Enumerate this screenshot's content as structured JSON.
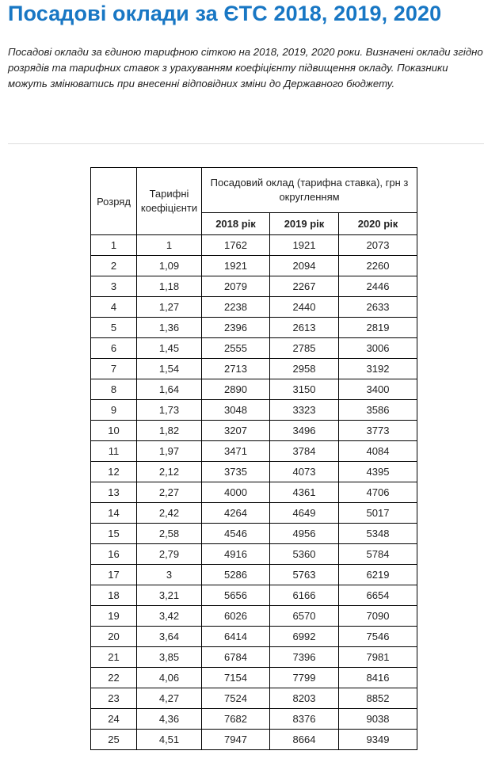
{
  "title": "Посадові оклади за ЄТС 2018, 2019, 2020",
  "intro": "Посадові оклади за єдиною тарифною сіткою на 2018, 2019, 2020 роки. Визначені оклади згідно розрядів та тарифних ставок з урахуванням коефіцієнту підвищення окладу. Показники можуть змінюватись при внесенні відповідних зміни до Державного бюджету.",
  "table": {
    "headers": {
      "rank": "Розряд",
      "coef": "Тарифні коефіцієнти",
      "salary": "Посадовий оклад (тарифна ставка), грн з округленням",
      "years": [
        "2018 рік",
        "2019 рік",
        "2020 рік"
      ]
    },
    "rows": [
      [
        "1",
        "1",
        "1762",
        "1921",
        "2073"
      ],
      [
        "2",
        "1,09",
        "1921",
        "2094",
        "2260"
      ],
      [
        "3",
        "1,18",
        "2079",
        "2267",
        "2446"
      ],
      [
        "4",
        "1,27",
        "2238",
        "2440",
        "2633"
      ],
      [
        "5",
        "1,36",
        "2396",
        "2613",
        "2819"
      ],
      [
        "6",
        "1,45",
        "2555",
        "2785",
        "3006"
      ],
      [
        "7",
        "1,54",
        "2713",
        "2958",
        "3192"
      ],
      [
        "8",
        "1,64",
        "2890",
        "3150",
        "3400"
      ],
      [
        "9",
        "1,73",
        "3048",
        "3323",
        "3586"
      ],
      [
        "10",
        "1,82",
        "3207",
        "3496",
        "3773"
      ],
      [
        "11",
        "1,97",
        "3471",
        "3784",
        "4084"
      ],
      [
        "12",
        "2,12",
        "3735",
        "4073",
        "4395"
      ],
      [
        "13",
        "2,27",
        "4000",
        "4361",
        "4706"
      ],
      [
        "14",
        "2,42",
        "4264",
        "4649",
        "5017"
      ],
      [
        "15",
        "2,58",
        "4546",
        "4956",
        "5348"
      ],
      [
        "16",
        "2,79",
        "4916",
        "5360",
        "5784"
      ],
      [
        "17",
        "3",
        "5286",
        "5763",
        "6219"
      ],
      [
        "18",
        "3,21",
        "5656",
        "6166",
        "6654"
      ],
      [
        "19",
        "3,42",
        "6026",
        "6570",
        "7090"
      ],
      [
        "20",
        "3,64",
        "6414",
        "6992",
        "7546"
      ],
      [
        "21",
        "3,85",
        "6784",
        "7396",
        "7981"
      ],
      [
        "22",
        "4,06",
        "7154",
        "7799",
        "8416"
      ],
      [
        "23",
        "4,27",
        "7524",
        "8203",
        "8852"
      ],
      [
        "24",
        "4,36",
        "7682",
        "8376",
        "9038"
      ],
      [
        "25",
        "4,51",
        "7947",
        "8664",
        "9349"
      ]
    ]
  },
  "colors": {
    "title": "#1877c4",
    "rule": "#dddddd"
  }
}
